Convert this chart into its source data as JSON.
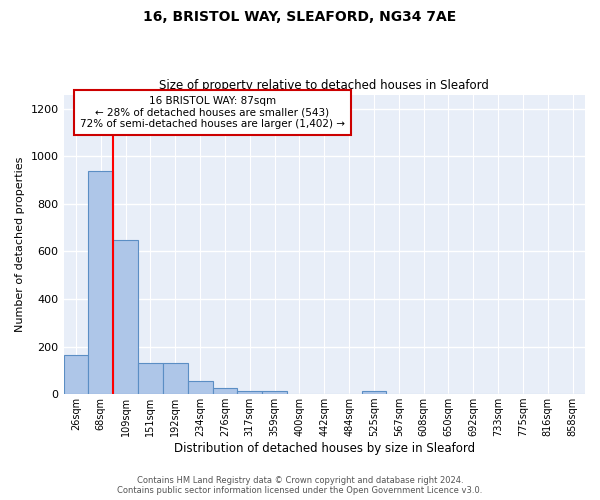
{
  "title1": "16, BRISTOL WAY, SLEAFORD, NG34 7AE",
  "title2": "Size of property relative to detached houses in Sleaford",
  "xlabel": "Distribution of detached houses by size in Sleaford",
  "ylabel": "Number of detached properties",
  "bin_labels": [
    "26sqm",
    "68sqm",
    "109sqm",
    "151sqm",
    "192sqm",
    "234sqm",
    "276sqm",
    "317sqm",
    "359sqm",
    "400sqm",
    "442sqm",
    "484sqm",
    "525sqm",
    "567sqm",
    "608sqm",
    "650sqm",
    "692sqm",
    "733sqm",
    "775sqm",
    "816sqm",
    "858sqm"
  ],
  "bar_heights": [
    163,
    940,
    648,
    130,
    130,
    57,
    25,
    13,
    13,
    0,
    0,
    0,
    13,
    0,
    0,
    0,
    0,
    0,
    0,
    0,
    0
  ],
  "bar_color": "#aec6e8",
  "bar_edge_color": "#5b8ec4",
  "bar_linewidth": 0.8,
  "background_color": "#e8eef8",
  "grid_color": "#ffffff",
  "red_line_x": 1.5,
  "annotation_text": "16 BRISTOL WAY: 87sqm\n← 28% of detached houses are smaller (543)\n72% of semi-detached houses are larger (1,402) →",
  "annotation_box_color": "#ffffff",
  "annotation_box_edge": "#cc0000",
  "ylim": [
    0,
    1260
  ],
  "yticks": [
    0,
    200,
    400,
    600,
    800,
    1000,
    1200
  ],
  "footer1": "Contains HM Land Registry data © Crown copyright and database right 2024.",
  "footer2": "Contains public sector information licensed under the Open Government Licence v3.0."
}
